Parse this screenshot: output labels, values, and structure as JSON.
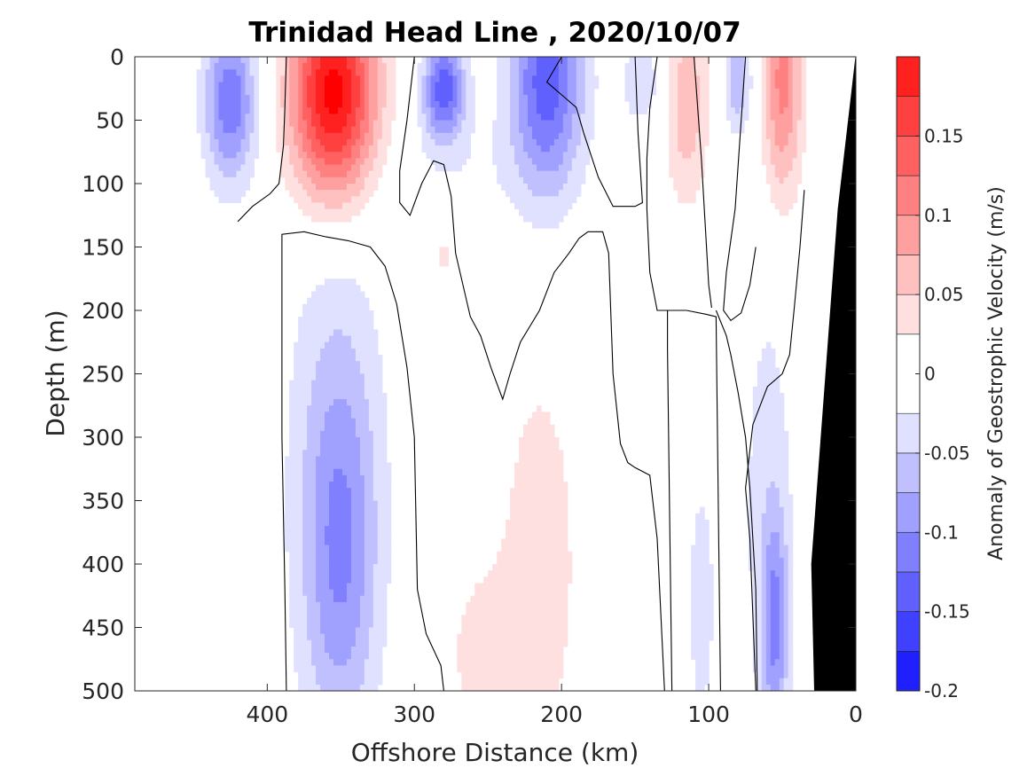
{
  "chart_data": {
    "type": "heatmap",
    "subtype": "filled-contour-section",
    "title": "Trinidad Head Line , 2020/10/07",
    "xlabel": "Offshore Distance (km)",
    "ylabel": "Depth (m)",
    "xlim": [
      490,
      0
    ],
    "ylim": [
      0,
      500
    ],
    "x_reversed": true,
    "y_reversed": true,
    "xticks": [
      400,
      300,
      200,
      100,
      0
    ],
    "yticks": [
      0,
      50,
      100,
      150,
      200,
      250,
      300,
      350,
      400,
      450,
      500
    ],
    "colorbar": {
      "label": "Anomaly of Geostrophic Velocity (m/s)",
      "range": [
        -0.2,
        0.2
      ],
      "levels": [
        -0.2,
        -0.175,
        -0.15,
        -0.125,
        -0.1,
        -0.075,
        -0.05,
        -0.025,
        0.025,
        0.05,
        0.075,
        0.1,
        0.125,
        0.15,
        0.175,
        0.2
      ],
      "ticks": [
        -0.2,
        -0.15,
        -0.1,
        -0.05,
        0,
        0.05,
        0.1,
        0.15
      ],
      "tick_labels": [
        "-0.2",
        "-0.15",
        "-0.1",
        "-0.05",
        "0",
        "0.05",
        "0.1",
        "0.15"
      ],
      "colors": [
        "#0000ff",
        "#2020ff",
        "#4040ff",
        "#6060ff",
        "#8080ff",
        "#a0a0ff",
        "#c0c0ff",
        "#e0e0ff",
        "#ffffff",
        "#ffe0e0",
        "#ffc0c0",
        "#ffa0a0",
        "#ff8080",
        "#ff6060",
        "#ff4040",
        "#ff2020",
        "#ff0000"
      ],
      "location": "right"
    },
    "cores": [
      {
        "x": 425,
        "depth": 35,
        "peak": -0.12,
        "half_width_km": 18,
        "depth_extent": 65
      },
      {
        "x": 355,
        "depth": 30,
        "peak": 0.22,
        "half_width_km": 30,
        "depth_extent": 85
      },
      {
        "x": 280,
        "depth": 25,
        "peak": -0.14,
        "half_width_km": 14,
        "depth_extent": 40
      },
      {
        "x": 270,
        "depth": 95,
        "peak": -0.02,
        "half_width_km": 45,
        "depth_extent": 60
      },
      {
        "x": 210,
        "depth": 20,
        "peak": -0.14,
        "half_width_km": 25,
        "depth_extent": 90
      },
      {
        "x": 145,
        "depth": 20,
        "peak": -0.04,
        "half_width_km": 18,
        "depth_extent": 40
      },
      {
        "x": 115,
        "depth": 35,
        "peak": 0.07,
        "half_width_km": 15,
        "depth_extent": 80
      },
      {
        "x": 80,
        "depth": 20,
        "peak": -0.07,
        "half_width_km": 10,
        "depth_extent": 40
      },
      {
        "x": 50,
        "depth": 20,
        "peak": 0.11,
        "half_width_km": 14,
        "depth_extent": 95
      },
      {
        "x": 350,
        "depth": 390,
        "peak": -0.08,
        "half_width_km": 25,
        "depth_extent": 150
      },
      {
        "x": 355,
        "depth": 300,
        "peak": -0.035,
        "half_width_km": 38,
        "depth_extent": 250
      },
      {
        "x": 280,
        "depth": 150,
        "peak": 0.035,
        "half_width_km": 8,
        "depth_extent": 45
      },
      {
        "x": 215,
        "depth": 400,
        "peak": 0.04,
        "half_width_km": 30,
        "depth_extent": 180
      },
      {
        "x": 255,
        "depth": 470,
        "peak": 0.035,
        "half_width_km": 25,
        "depth_extent": 70
      },
      {
        "x": 105,
        "depth": 430,
        "peak": -0.04,
        "half_width_km": 10,
        "depth_extent": 110
      },
      {
        "x": 55,
        "depth": 450,
        "peak": -0.09,
        "half_width_km": 9,
        "depth_extent": 90
      },
      {
        "x": 60,
        "depth": 340,
        "peak": -0.035,
        "half_width_km": 20,
        "depth_extent": 200
      }
    ],
    "zero_contours": [
      [
        [
          420,
          130
        ],
        [
          410,
          118
        ],
        [
          398,
          108
        ],
        [
          392,
          100
        ],
        [
          389,
          70
        ],
        [
          388,
          40
        ],
        [
          387,
          0
        ]
      ],
      [
        [
          387,
          500
        ],
        [
          388,
          420
        ],
        [
          390,
          300
        ],
        [
          390,
          140
        ],
        [
          375,
          138
        ],
        [
          360,
          142
        ],
        [
          345,
          145
        ],
        [
          330,
          150
        ],
        [
          320,
          165
        ],
        [
          312,
          195
        ],
        [
          305,
          245
        ],
        [
          300,
          300
        ],
        [
          298,
          420
        ],
        [
          292,
          455
        ],
        [
          282,
          480
        ],
        [
          280,
          500
        ]
      ],
      [
        [
          300,
          0
        ],
        [
          305,
          50
        ],
        [
          310,
          90
        ],
        [
          310,
          115
        ],
        [
          303,
          125
        ],
        [
          295,
          100
        ],
        [
          287,
          82
        ],
        [
          280,
          85
        ],
        [
          275,
          110
        ],
        [
          272,
          155
        ],
        [
          262,
          205
        ],
        [
          255,
          220
        ],
        [
          248,
          245
        ],
        [
          240,
          270
        ],
        [
          235,
          250
        ],
        [
          228,
          225
        ],
        [
          215,
          200
        ],
        [
          205,
          170
        ],
        [
          195,
          155
        ],
        [
          188,
          143
        ],
        [
          182,
          138
        ],
        [
          172,
          138
        ],
        [
          168,
          155
        ],
        [
          165,
          250
        ],
        [
          160,
          305
        ],
        [
          155,
          320
        ],
        [
          150,
          324
        ],
        [
          140,
          330
        ],
        [
          135,
          380
        ],
        [
          130,
          500
        ]
      ],
      [
        [
          125,
          500
        ],
        [
          128,
          230
        ],
        [
          128,
          200
        ],
        [
          115,
          200
        ],
        [
          102,
          203
        ],
        [
          95,
          205
        ],
        [
          92,
          500
        ]
      ],
      [
        [
          150,
          0
        ],
        [
          148,
          60
        ],
        [
          145,
          115
        ],
        [
          150,
          118
        ],
        [
          165,
          118
        ],
        [
          175,
          95
        ],
        [
          185,
          60
        ],
        [
          190,
          40
        ],
        [
          210,
          20
        ],
        [
          200,
          0
        ]
      ],
      [
        [
          135,
          0
        ],
        [
          140,
          40
        ],
        [
          142,
          80
        ],
        [
          142,
          120
        ],
        [
          140,
          170
        ],
        [
          135,
          200
        ],
        [
          128,
          200
        ]
      ],
      [
        [
          75,
          0
        ],
        [
          82,
          120
        ],
        [
          88,
          170
        ],
        [
          90,
          200
        ],
        [
          85,
          208
        ],
        [
          78,
          202
        ],
        [
          72,
          180
        ],
        [
          68,
          150
        ]
      ],
      [
        [
          67,
          500
        ],
        [
          68,
          420
        ],
        [
          72,
          340
        ],
        [
          75,
          300
        ],
        [
          80,
          265
        ],
        [
          85,
          235
        ],
        [
          88,
          220
        ],
        [
          95,
          200
        ]
      ],
      [
        [
          110,
          0
        ],
        [
          105,
          80
        ],
        [
          100,
          180
        ],
        [
          98,
          198
        ]
      ],
      [
        [
          35,
          105
        ],
        [
          38,
          150
        ],
        [
          42,
          200
        ],
        [
          45,
          235
        ],
        [
          50,
          250
        ],
        [
          60,
          260
        ],
        [
          70,
          290
        ],
        [
          75,
          340
        ],
        [
          72,
          380
        ],
        [
          68,
          500
        ]
      ]
    ],
    "bathymetry": [
      [
        0,
        0
      ],
      [
        0,
        500
      ],
      [
        28,
        500
      ],
      [
        30,
        400
      ],
      [
        12,
        120
      ],
      [
        2,
        20
      ],
      [
        0,
        0
      ]
    ]
  }
}
